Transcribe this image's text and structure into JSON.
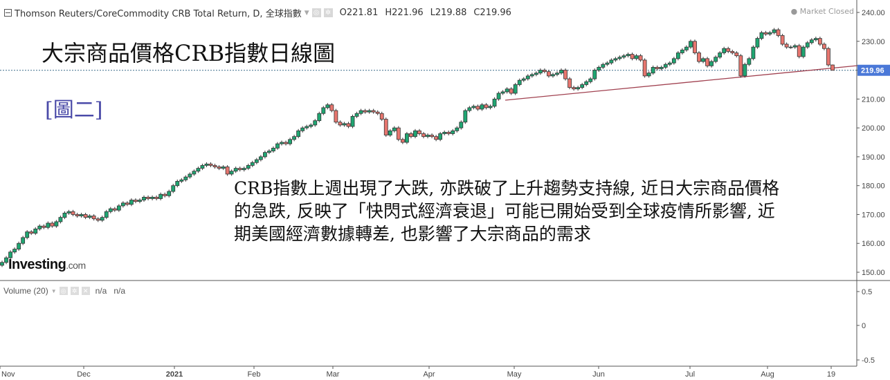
{
  "header": {
    "collapse_icon": "minus-square-icon",
    "instrument": "Thomson Reuters/CoreCommodity CRB Total Return, D, 全球指數",
    "dropdown_icon": "caret-down-icon",
    "icons": [
      "eye-icon",
      "gear-icon"
    ],
    "open": "O221.81",
    "high": "H221.96",
    "low": "L219.88",
    "close": "C219.96",
    "market_status": "Market Closed"
  },
  "volume_pane": {
    "label": "Volume (20)",
    "icons": [
      "eye-icon",
      "gear-icon",
      "close-icon"
    ],
    "value1": "n/a",
    "value2": "n/a",
    "y_ticks": [
      "0.5",
      "0",
      "-0.5"
    ]
  },
  "annotations": {
    "title": "大宗商品價格CRB指數日線圖",
    "figure_label": "[圖二]",
    "body": "CRB指數上週出現了大跌, 亦跌破了上升趨勢支持線, 近日大宗商品價格的急跌, 反映了「快閃式經濟衰退」可能已開始受到全球疫情所影響, 近期美國經濟數據轉差, 也影響了大宗商品的需求"
  },
  "logo": {
    "text": "Investing",
    "suffix": ".com"
  },
  "chart_data": {
    "type": "candlestick",
    "colors": {
      "up": "#1fa672",
      "down": "#e8766f",
      "outline": "#333333",
      "trendline": "#a0404f",
      "price_label": "#4a78d8",
      "title_text": "#111111",
      "figure_label": "#4a4aa8"
    },
    "y_range": [
      147,
      242
    ],
    "y_ticks": [
      "240.00",
      "230.00",
      "220.00",
      "210.00",
      "200.00",
      "190.00",
      "180.00",
      "170.00",
      "160.00",
      "150.00"
    ],
    "x_ticks": [
      "Nov",
      "Dec",
      "2021",
      "Feb",
      "Mar",
      "Apr",
      "May",
      "Jun",
      "Jul",
      "Aug",
      "19"
    ],
    "last_price": "219.96",
    "last_candle": {
      "open": 221.81,
      "high": 221.96,
      "low": 219.88,
      "close": 219.96
    },
    "closes": [
      153.4,
      155,
      157,
      158,
      160,
      162,
      164,
      163.5,
      165,
      166,
      165.5,
      167,
      166,
      167.5,
      169,
      170.5,
      171,
      170,
      169.5,
      170,
      169,
      169.5,
      168.5,
      168,
      169,
      171,
      172,
      171.5,
      173,
      174,
      173.5,
      175,
      174.5,
      175,
      176,
      175.5,
      176,
      175.5,
      177,
      176.5,
      178,
      180,
      181.5,
      182,
      183,
      184,
      185,
      186,
      187,
      187.5,
      187,
      186.5,
      186,
      186.5,
      184,
      185,
      186,
      185.5,
      186,
      187,
      188,
      189,
      190,
      191.5,
      192,
      193,
      194.5,
      195,
      194.5,
      196,
      197,
      199,
      200,
      200.5,
      201,
      202.5,
      205,
      207,
      208,
      206,
      202,
      201,
      201.5,
      200.5,
      204,
      205,
      206,
      205.5,
      206,
      205.5,
      205,
      203,
      197.5,
      199,
      200,
      196,
      195,
      198,
      197,
      199,
      198,
      197,
      197.5,
      197,
      196,
      198,
      198.5,
      198,
      199,
      200,
      202,
      206,
      207,
      207.5,
      206.5,
      208,
      207,
      207.5,
      210,
      212,
      212.5,
      213.5,
      212,
      215,
      216.5,
      217,
      218,
      218.5,
      219,
      220,
      219.5,
      218,
      218.5,
      219,
      220,
      217,
      214,
      213.5,
      214,
      215,
      216,
      217,
      220,
      221,
      222,
      222.5,
      223.5,
      224,
      224.5,
      225,
      225.5,
      224,
      225,
      223.5,
      218,
      219,
      221,
      220.5,
      221,
      222,
      222.5,
      224,
      226,
      227,
      228,
      230,
      226,
      223,
      224,
      221.5,
      223,
      224.5,
      226,
      227.5,
      226.5,
      226,
      225,
      218,
      222,
      224,
      228,
      231,
      233,
      232.5,
      233,
      234,
      232,
      229,
      228,
      228,
      228.5,
      224.7,
      228,
      229.5,
      230.5,
      231,
      229,
      227.5,
      221.81,
      219.96
    ],
    "trendline": {
      "start_value": 209.6,
      "end_value": 221.6
    }
  }
}
